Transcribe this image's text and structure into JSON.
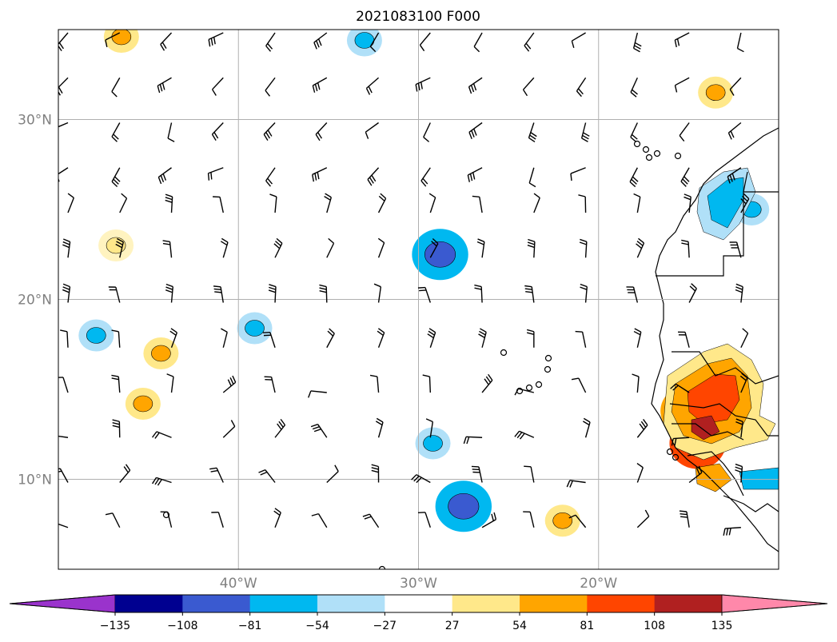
{
  "title": "2021083100 F000",
  "map": {
    "lon_range": [
      -50,
      -10
    ],
    "lat_range": [
      5,
      35
    ],
    "gridlines": true,
    "lat_labels": [
      {
        "lat": 30,
        "text": "30°N"
      },
      {
        "lat": 20,
        "text": "20°N"
      },
      {
        "lat": 10,
        "text": "10°N"
      }
    ],
    "lon_labels": [
      {
        "lon": -40,
        "text": "40°W"
      },
      {
        "lon": -30,
        "text": "30°W"
      },
      {
        "lon": -20,
        "text": "20°W"
      }
    ],
    "gridline_color": "#b0b0b0"
  },
  "colorbar": {
    "ticks": [
      "−135",
      "−108",
      "−81",
      "−54",
      "−27",
      "27",
      "54",
      "81",
      "108",
      "135"
    ],
    "tick_values": [
      -135,
      -108,
      -81,
      -54,
      -27,
      27,
      54,
      81,
      108,
      135
    ],
    "colors": [
      "#9a33cc",
      "#000090",
      "#3a5ad0",
      "#00b8f0",
      "#b0e0f8",
      "#ffffff",
      "#ffe88a",
      "#ffa500",
      "#ff4500",
      "#b02020",
      "#ff88aa"
    ],
    "extend": "both"
  },
  "chart_data": {
    "type": "map",
    "field": "filled contour with wind barbs",
    "features": [
      {
        "color": "#ffa500",
        "lon": -45.3,
        "lat": 14.2,
        "level": 54
      },
      {
        "color": "#ffa500",
        "lon": -44.3,
        "lat": 17.0,
        "level": 54
      },
      {
        "color": "#ffe88a",
        "lon": -46.8,
        "lat": 23.0,
        "level": 27
      },
      {
        "color": "#00b8f0",
        "lon": -47.9,
        "lat": 18.0,
        "level": -54
      },
      {
        "color": "#3a5ad0",
        "lon": -28.8,
        "lat": 22.5,
        "level": -108
      },
      {
        "color": "#00b8f0",
        "lon": -29.2,
        "lat": 12.0,
        "level": -54
      },
      {
        "color": "#3a5ad0",
        "lon": -27.5,
        "lat": 8.5,
        "level": -81
      },
      {
        "color": "#00b8f0",
        "lon": -39.1,
        "lat": 18.4,
        "level": -54
      },
      {
        "color": "#ffa500",
        "lon": -22.0,
        "lat": 7.7,
        "level": 54
      },
      {
        "color": "#ff4500",
        "lon": -15.0,
        "lat": 13.8,
        "level": 81
      },
      {
        "color": "#b02020",
        "lon": -14.5,
        "lat": 12.0,
        "level": 108
      },
      {
        "color": "#00b8f0",
        "lon": -11.5,
        "lat": 25.0,
        "level": -54
      },
      {
        "color": "#ffa500",
        "lon": -13.5,
        "lat": 31.5,
        "level": 54
      },
      {
        "color": "#ffa500",
        "lon": -46.5,
        "lat": 34.6,
        "level": 54
      },
      {
        "color": "#00b8f0",
        "lon": -33.0,
        "lat": 34.4,
        "level": -54
      }
    ]
  }
}
